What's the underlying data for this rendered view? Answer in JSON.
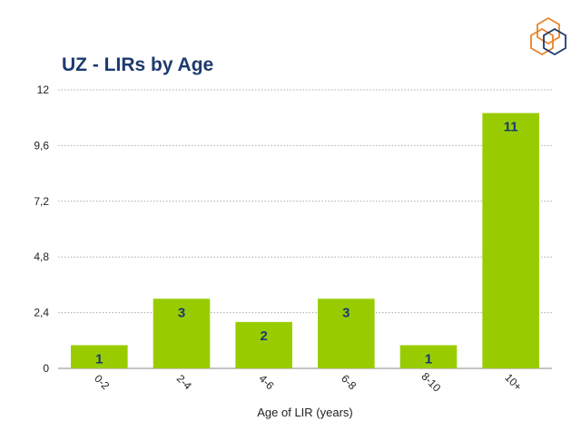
{
  "colors": {
    "bar": "#99cc00",
    "title": "#1c3a6e",
    "data_label": "#1c3a6e",
    "grid": "#aaaaaa",
    "logo_orange": "#e8842c",
    "logo_navy": "#1c3a6e"
  },
  "logo": {
    "icon": "ripe-ncc-hexagon-logo-icon"
  },
  "chart_data": {
    "type": "bar",
    "title": "UZ - LIRs by Age",
    "xlabel": "Age of LIR (years)",
    "ylabel": "",
    "categories": [
      "0-2",
      "2-4",
      "4-6",
      "6-8",
      "8-10",
      "10+"
    ],
    "values": [
      1,
      3,
      2,
      3,
      1,
      11
    ],
    "value_labels": [
      "1",
      "3",
      "2",
      "3",
      "1",
      "11"
    ],
    "ylim": [
      0,
      12
    ],
    "yticks": [
      0,
      2.4,
      4.8,
      7.2,
      9.6,
      12
    ],
    "ytick_labels": [
      "0",
      "2,4",
      "4,8",
      "7,2",
      "9,6",
      "12"
    ],
    "grid": true,
    "legend": "none"
  }
}
